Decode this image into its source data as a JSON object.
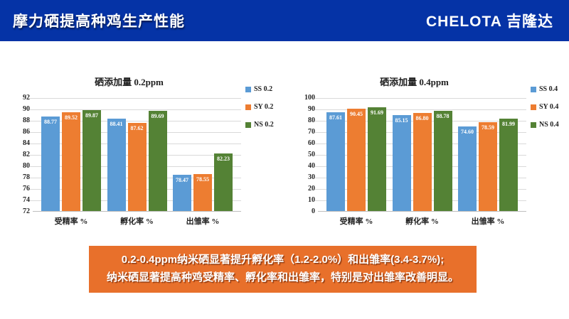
{
  "header": {
    "title": "摩力硒提高种鸡生产性能",
    "logo": "CHELOTA 吉隆达",
    "bg_color": "#0533a6"
  },
  "colors": {
    "bar_blue": "#5b9bd5",
    "bar_orange": "#ed7d31",
    "bar_green": "#548235",
    "gridline": "#d9d9d9",
    "callout_bg": "#e8702b"
  },
  "chart_data": [
    {
      "type": "bar",
      "title": "硒添加量 0.2ppm",
      "categories": [
        "受精率 %",
        "孵化率 %",
        "出雏率 %"
      ],
      "series": [
        {
          "name": "SS 0.2",
          "color": "#5b9bd5",
          "values": [
            88.77,
            88.41,
            78.47
          ]
        },
        {
          "name": "SY 0.2",
          "color": "#ed7d31",
          "values": [
            89.52,
            87.62,
            78.55
          ]
        },
        {
          "name": "NS 0.2",
          "color": "#548235",
          "values": [
            89.87,
            89.69,
            82.23
          ]
        }
      ],
      "ylim": [
        72,
        92
      ],
      "yticks": [
        "92",
        "90",
        "88",
        "86",
        "84",
        "82",
        "80",
        "78",
        "76",
        "74",
        "72"
      ],
      "grid": true,
      "legend_position": "right",
      "value_label_decimals": 2
    },
    {
      "type": "bar",
      "title": "硒添加量 0.4ppm",
      "categories": [
        "受精率 %",
        "孵化率 %",
        "出雏率 %"
      ],
      "series": [
        {
          "name": "SS 0.4",
          "color": "#5b9bd5",
          "values": [
            87.61,
            85.15,
            74.6
          ]
        },
        {
          "name": "SY 0.4",
          "color": "#ed7d31",
          "values": [
            90.45,
            86.8,
            78.59
          ]
        },
        {
          "name": "NS 0.4",
          "color": "#548235",
          "values": [
            91.69,
            88.78,
            81.99
          ]
        }
      ],
      "ylim": [
        0,
        100
      ],
      "yticks": [
        "100",
        "90",
        "80",
        "70",
        "60",
        "50",
        "40",
        "30",
        "20",
        "10",
        "0"
      ],
      "grid": true,
      "legend_position": "right",
      "value_label_decimals": 2
    }
  ],
  "callout": {
    "line1": "0.2-0.4ppm纳米硒显著提升孵化率（1.2-2.0%）和出雏率(3.4-3.7%);",
    "line2": "纳米硒显著提高种鸡受精率、孵化率和出雏率，特别是对出雏率改善明显。"
  }
}
